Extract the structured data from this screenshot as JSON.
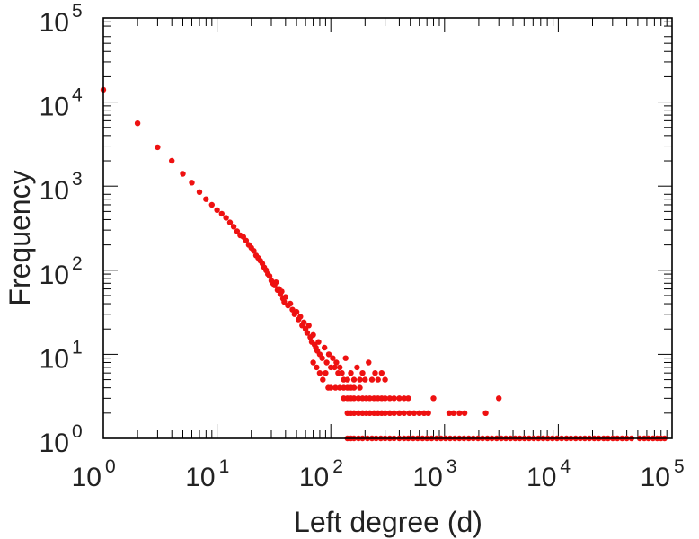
{
  "chart_data": {
    "type": "scatter",
    "title": "",
    "xlabel": "Left degree (d)",
    "ylabel": "Frequency",
    "x_scale": "log",
    "y_scale": "log",
    "xlim": [
      1,
      100000
    ],
    "ylim": [
      1,
      100000
    ],
    "grid": false,
    "legend": "none",
    "x_ticks": [
      {
        "base": "10",
        "exp": "0"
      },
      {
        "base": "10",
        "exp": "1"
      },
      {
        "base": "10",
        "exp": "2"
      },
      {
        "base": "10",
        "exp": "3"
      },
      {
        "base": "10",
        "exp": "4"
      },
      {
        "base": "10",
        "exp": "5"
      }
    ],
    "y_ticks": [
      {
        "base": "10",
        "exp": "0"
      },
      {
        "base": "10",
        "exp": "1"
      },
      {
        "base": "10",
        "exp": "2"
      },
      {
        "base": "10",
        "exp": "3"
      },
      {
        "base": "10",
        "exp": "4"
      },
      {
        "base": "10",
        "exp": "5"
      }
    ],
    "marker_color": "#ee1111",
    "points": [
      [
        1,
        14000
      ],
      [
        2,
        5600
      ],
      [
        3,
        2900
      ],
      [
        4,
        2000
      ],
      [
        5,
        1400
      ],
      [
        6,
        1100
      ],
      [
        7,
        850
      ],
      [
        8,
        700
      ],
      [
        9,
        600
      ],
      [
        10,
        520
      ],
      [
        11,
        470
      ],
      [
        12,
        420
      ],
      [
        13,
        370
      ],
      [
        14,
        330
      ],
      [
        15,
        290
      ],
      [
        16,
        260
      ],
      [
        17,
        250
      ],
      [
        18,
        225
      ],
      [
        19,
        200
      ],
      [
        20,
        185
      ],
      [
        21,
        170
      ],
      [
        22,
        150
      ],
      [
        23,
        140
      ],
      [
        24,
        130
      ],
      [
        25,
        120
      ],
      [
        26,
        108
      ],
      [
        27,
        100
      ],
      [
        28,
        90
      ],
      [
        29,
        85
      ],
      [
        30,
        75
      ],
      [
        31,
        70
      ],
      [
        32,
        66
      ],
      [
        33,
        72
      ],
      [
        34,
        58
      ],
      [
        35,
        60
      ],
      [
        36,
        52
      ],
      [
        37,
        56
      ],
      [
        38,
        46
      ],
      [
        39,
        42
      ],
      [
        40,
        48
      ],
      [
        42,
        38
      ],
      [
        44,
        40
      ],
      [
        46,
        34
      ],
      [
        48,
        30
      ],
      [
        50,
        32
      ],
      [
        52,
        26
      ],
      [
        54,
        28
      ],
      [
        56,
        22
      ],
      [
        58,
        24
      ],
      [
        60,
        20
      ],
      [
        62,
        18
      ],
      [
        64,
        22
      ],
      [
        66,
        16
      ],
      [
        68,
        14
      ],
      [
        70,
        17
      ],
      [
        72,
        13
      ],
      [
        74,
        12
      ],
      [
        76,
        11
      ],
      [
        78,
        14
      ],
      [
        80,
        10
      ],
      [
        84,
        9
      ],
      [
        88,
        12
      ],
      [
        92,
        8
      ],
      [
        96,
        10
      ],
      [
        100,
        7
      ],
      [
        104,
        9
      ],
      [
        108,
        7
      ],
      [
        112,
        8
      ],
      [
        116,
        6
      ],
      [
        120,
        7
      ],
      [
        125,
        6
      ],
      [
        130,
        5
      ],
      [
        135,
        9
      ],
      [
        140,
        5
      ],
      [
        150,
        6
      ],
      [
        160,
        5
      ],
      [
        170,
        7
      ],
      [
        180,
        5
      ],
      [
        190,
        6
      ],
      [
        200,
        5
      ],
      [
        215,
        8
      ],
      [
        230,
        5
      ],
      [
        245,
        6
      ],
      [
        260,
        5
      ],
      [
        280,
        6
      ],
      [
        300,
        5
      ],
      [
        70,
        8
      ],
      [
        75,
        7
      ],
      [
        80,
        6
      ],
      [
        85,
        5
      ],
      [
        90,
        6
      ],
      [
        95,
        4
      ],
      [
        100,
        4
      ],
      [
        110,
        4
      ],
      [
        120,
        4
      ],
      [
        130,
        4
      ],
      [
        140,
        4
      ],
      [
        150,
        4
      ],
      [
        160,
        4
      ],
      [
        180,
        4
      ],
      [
        130,
        3
      ],
      [
        140,
        3
      ],
      [
        150,
        3
      ],
      [
        160,
        3
      ],
      [
        175,
        3
      ],
      [
        190,
        3
      ],
      [
        205,
        3
      ],
      [
        220,
        3
      ],
      [
        240,
        3
      ],
      [
        260,
        3
      ],
      [
        280,
        3
      ],
      [
        300,
        3
      ],
      [
        330,
        3
      ],
      [
        360,
        3
      ],
      [
        400,
        3
      ],
      [
        440,
        3
      ],
      [
        480,
        3
      ],
      [
        800,
        3
      ],
      [
        3000,
        3
      ],
      [
        140,
        2
      ],
      [
        150,
        2
      ],
      [
        160,
        2
      ],
      [
        175,
        2
      ],
      [
        190,
        2
      ],
      [
        205,
        2
      ],
      [
        220,
        2
      ],
      [
        240,
        2
      ],
      [
        260,
        2
      ],
      [
        280,
        2
      ],
      [
        300,
        2
      ],
      [
        330,
        2
      ],
      [
        360,
        2
      ],
      [
        400,
        2
      ],
      [
        440,
        2
      ],
      [
        490,
        2
      ],
      [
        540,
        2
      ],
      [
        600,
        2
      ],
      [
        660,
        2
      ],
      [
        720,
        2
      ],
      [
        1100,
        2
      ],
      [
        1200,
        2
      ],
      [
        1350,
        2
      ],
      [
        1500,
        2
      ],
      [
        2300,
        2
      ],
      [
        140,
        1
      ],
      [
        150,
        1
      ],
      [
        160,
        1
      ],
      [
        175,
        1
      ],
      [
        190,
        1
      ],
      [
        210,
        1
      ],
      [
        230,
        1
      ],
      [
        250,
        1
      ],
      [
        275,
        1
      ],
      [
        300,
        1
      ],
      [
        330,
        1
      ],
      [
        360,
        1
      ],
      [
        400,
        1
      ],
      [
        440,
        1
      ],
      [
        480,
        1
      ],
      [
        530,
        1
      ],
      [
        580,
        1
      ],
      [
        640,
        1
      ],
      [
        700,
        1
      ],
      [
        770,
        1
      ],
      [
        850,
        1
      ],
      [
        930,
        1
      ],
      [
        1020,
        1
      ],
      [
        1120,
        1
      ],
      [
        1230,
        1
      ],
      [
        1350,
        1
      ],
      [
        1480,
        1
      ],
      [
        1630,
        1
      ],
      [
        1790,
        1
      ],
      [
        1970,
        1
      ],
      [
        2160,
        1
      ],
      [
        2380,
        1
      ],
      [
        2610,
        1
      ],
      [
        2870,
        1
      ],
      [
        3150,
        1
      ],
      [
        3460,
        1
      ],
      [
        3800,
        1
      ],
      [
        4180,
        1
      ],
      [
        4590,
        1
      ],
      [
        5040,
        1
      ],
      [
        5540,
        1
      ],
      [
        6090,
        1
      ],
      [
        6690,
        1
      ],
      [
        7350,
        1
      ],
      [
        8070,
        1
      ],
      [
        8870,
        1
      ],
      [
        9740,
        1
      ],
      [
        10700,
        1
      ],
      [
        11800,
        1
      ],
      [
        12900,
        1
      ],
      [
        14200,
        1
      ],
      [
        15600,
        1
      ],
      [
        17100,
        1
      ],
      [
        18800,
        1
      ],
      [
        20700,
        1
      ],
      [
        22700,
        1
      ],
      [
        25000,
        1
      ],
      [
        27400,
        1
      ],
      [
        30100,
        1
      ],
      [
        33100,
        1
      ],
      [
        36400,
        1
      ],
      [
        40000,
        1
      ],
      [
        44000,
        1
      ],
      [
        52000,
        1
      ],
      [
        57000,
        1
      ],
      [
        62000,
        1
      ],
      [
        68000,
        1
      ],
      [
        74000,
        1
      ],
      [
        80000,
        1
      ],
      [
        86000,
        1
      ]
    ]
  }
}
